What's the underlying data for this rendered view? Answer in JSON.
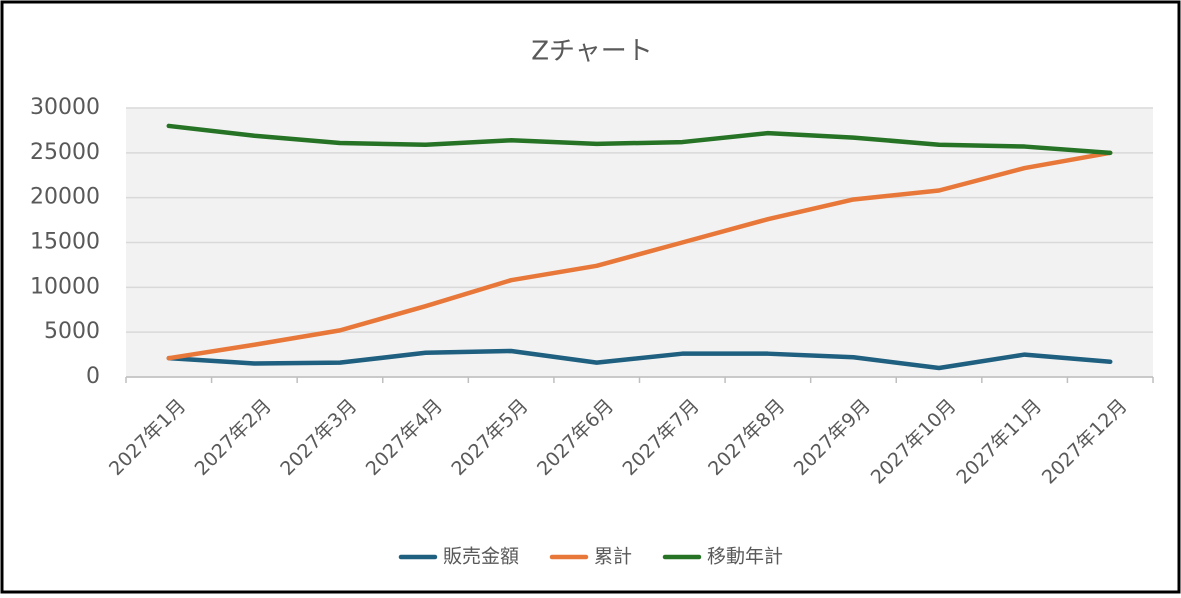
{
  "chart_data": {
    "type": "line",
    "title": "Zチャート",
    "categories": [
      "2027年1月",
      "2027年2月",
      "2027年3月",
      "2027年4月",
      "2027年5月",
      "2027年6月",
      "2027年7月",
      "2027年8月",
      "2027年9月",
      "2027年10月",
      "2027年11月",
      "2027年12月"
    ],
    "series": [
      {
        "name": "販売金額",
        "color": "#1f5f7f",
        "values": [
          2100,
          1500,
          1600,
          2700,
          2900,
          1600,
          2600,
          2600,
          2200,
          1000,
          2500,
          1700
        ]
      },
      {
        "name": "累計",
        "color": "#e8783a",
        "values": [
          2100,
          3600,
          5200,
          7900,
          10800,
          12400,
          15000,
          17600,
          19800,
          20800,
          23300,
          25000
        ]
      },
      {
        "name": "移動年計",
        "color": "#267326",
        "values": [
          28000,
          26900,
          26100,
          25900,
          26400,
          26000,
          26200,
          27200,
          26700,
          25900,
          25700,
          25000
        ]
      }
    ],
    "ylim": [
      0,
      30000
    ],
    "yticks": [
      0,
      5000,
      10000,
      15000,
      20000,
      25000,
      30000
    ],
    "grid": true,
    "legend": "bottom"
  }
}
